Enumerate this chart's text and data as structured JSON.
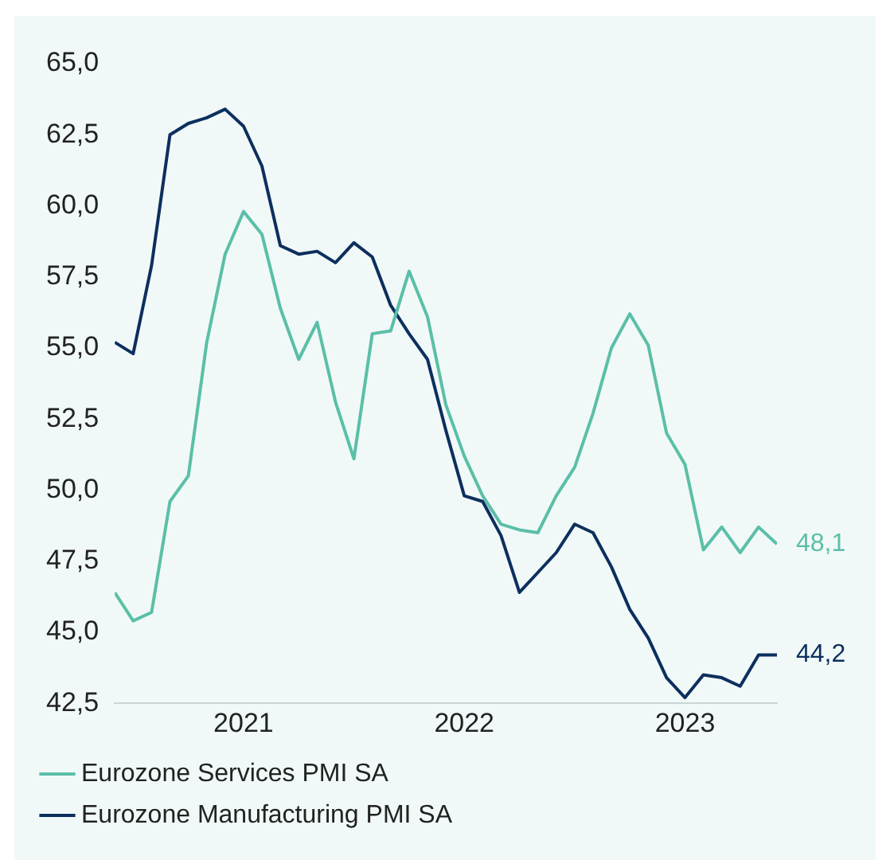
{
  "chart_data": {
    "type": "line",
    "x": [
      "2020-12",
      "2021-01",
      "2021-02",
      "2021-03",
      "2021-04",
      "2021-05",
      "2021-06",
      "2021-07",
      "2021-08",
      "2021-09",
      "2021-10",
      "2021-11",
      "2021-12",
      "2022-01",
      "2022-02",
      "2022-03",
      "2022-04",
      "2022-05",
      "2022-06",
      "2022-07",
      "2022-08",
      "2022-09",
      "2022-10",
      "2022-11",
      "2022-12",
      "2023-01",
      "2023-02",
      "2023-03",
      "2023-04",
      "2023-05",
      "2023-06",
      "2023-07",
      "2023-08",
      "2023-09",
      "2023-10",
      "2023-11",
      "2023-12"
    ],
    "series": [
      {
        "name": "Eurozone Services PMI SA",
        "color": "#5bbfa8",
        "values": [
          46.4,
          45.4,
          45.7,
          49.6,
          50.5,
          55.2,
          58.3,
          59.8,
          59.0,
          56.4,
          54.6,
          55.9,
          53.1,
          51.1,
          55.5,
          55.6,
          57.7,
          56.1,
          53.0,
          51.2,
          49.8,
          48.8,
          48.6,
          48.5,
          49.8,
          50.8,
          52.7,
          55.0,
          56.2,
          55.1,
          52.0,
          50.9,
          47.9,
          48.7,
          47.8,
          48.7,
          48.1
        ],
        "value_labels": [
          null,
          null,
          null,
          null,
          null,
          null,
          null,
          null,
          null,
          null,
          null,
          null,
          null,
          null,
          null,
          null,
          null,
          null,
          null,
          null,
          null,
          null,
          null,
          null,
          null,
          null,
          null,
          null,
          null,
          null,
          null,
          null,
          null,
          null,
          null,
          null,
          "48,1"
        ]
      },
      {
        "name": "Eurozone Manufacturing PMI SA",
        "color": "#0d2f5e",
        "values": [
          55.2,
          54.8,
          57.9,
          62.5,
          62.9,
          63.1,
          63.4,
          62.8,
          61.4,
          58.6,
          58.3,
          58.4,
          58.0,
          58.7,
          58.2,
          56.5,
          55.5,
          54.6,
          52.1,
          49.8,
          49.6,
          48.4,
          46.4,
          47.1,
          47.8,
          48.8,
          48.5,
          47.3,
          45.8,
          44.8,
          43.4,
          42.7,
          43.5,
          43.4,
          43.1,
          44.2,
          44.2
        ],
        "value_labels": [
          null,
          null,
          null,
          null,
          null,
          null,
          null,
          null,
          null,
          null,
          null,
          null,
          null,
          null,
          null,
          null,
          null,
          null,
          null,
          null,
          null,
          null,
          null,
          null,
          null,
          null,
          null,
          null,
          null,
          null,
          null,
          null,
          null,
          null,
          null,
          null,
          "44,2"
        ]
      }
    ],
    "xlim": [
      "2020-12",
      "2023-12"
    ],
    "xticks": [
      {
        "value": "2021-07",
        "label": "2021"
      },
      {
        "value": "2022-07",
        "label": "2022"
      },
      {
        "value": "2023-07",
        "label": "2023"
      }
    ],
    "ylim": [
      42.5,
      65
    ],
    "yticks": [
      {
        "value": 42.5,
        "label": "42,5"
      },
      {
        "value": 45,
        "label": "45,0"
      },
      {
        "value": 47.5,
        "label": "47,5"
      },
      {
        "value": 50,
        "label": "50,0"
      },
      {
        "value": 52.5,
        "label": "52,5"
      },
      {
        "value": 55,
        "label": "55,0"
      },
      {
        "value": 57.5,
        "label": "57,5"
      },
      {
        "value": 60,
        "label": "60,0"
      },
      {
        "value": 62.5,
        "label": "62,5"
      },
      {
        "value": 65,
        "label": "65,0"
      }
    ],
    "grid": false,
    "legend": "bottom",
    "marker": "none",
    "line_style": "solid"
  }
}
